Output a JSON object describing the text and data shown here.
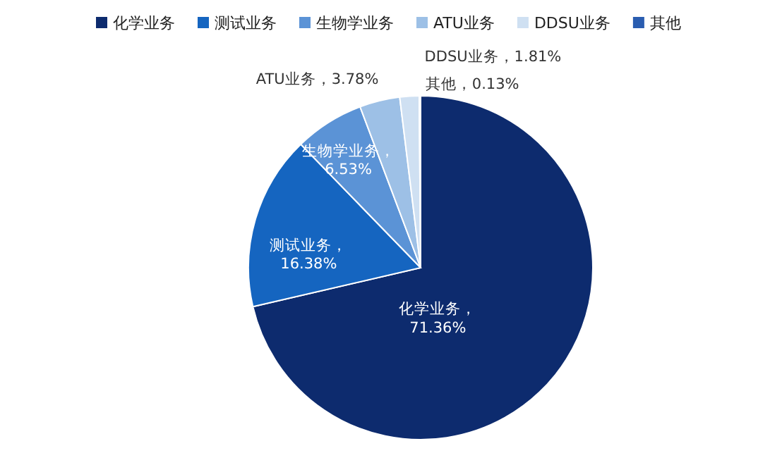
{
  "chart_data": {
    "type": "pie",
    "categories": [
      "化学业务",
      "测试业务",
      "生物学业务",
      "ATU业务",
      "DDSU业务",
      "其他"
    ],
    "values": [
      71.36,
      16.38,
      6.53,
      3.78,
      1.81,
      0.13
    ],
    "colors": [
      "#0d2b6e",
      "#1565c0",
      "#5b93d6",
      "#9dc0e6",
      "#cfe0f2",
      "#2a5db0"
    ],
    "value_labels": [
      "化学业务，\n71.36%",
      "测试业务，\n16.38%",
      "生物学业务，\n6.53%",
      "ATU业务，3.78%",
      "DDSU业务，1.81%",
      "其他，0.13%"
    ],
    "legend": "top"
  }
}
